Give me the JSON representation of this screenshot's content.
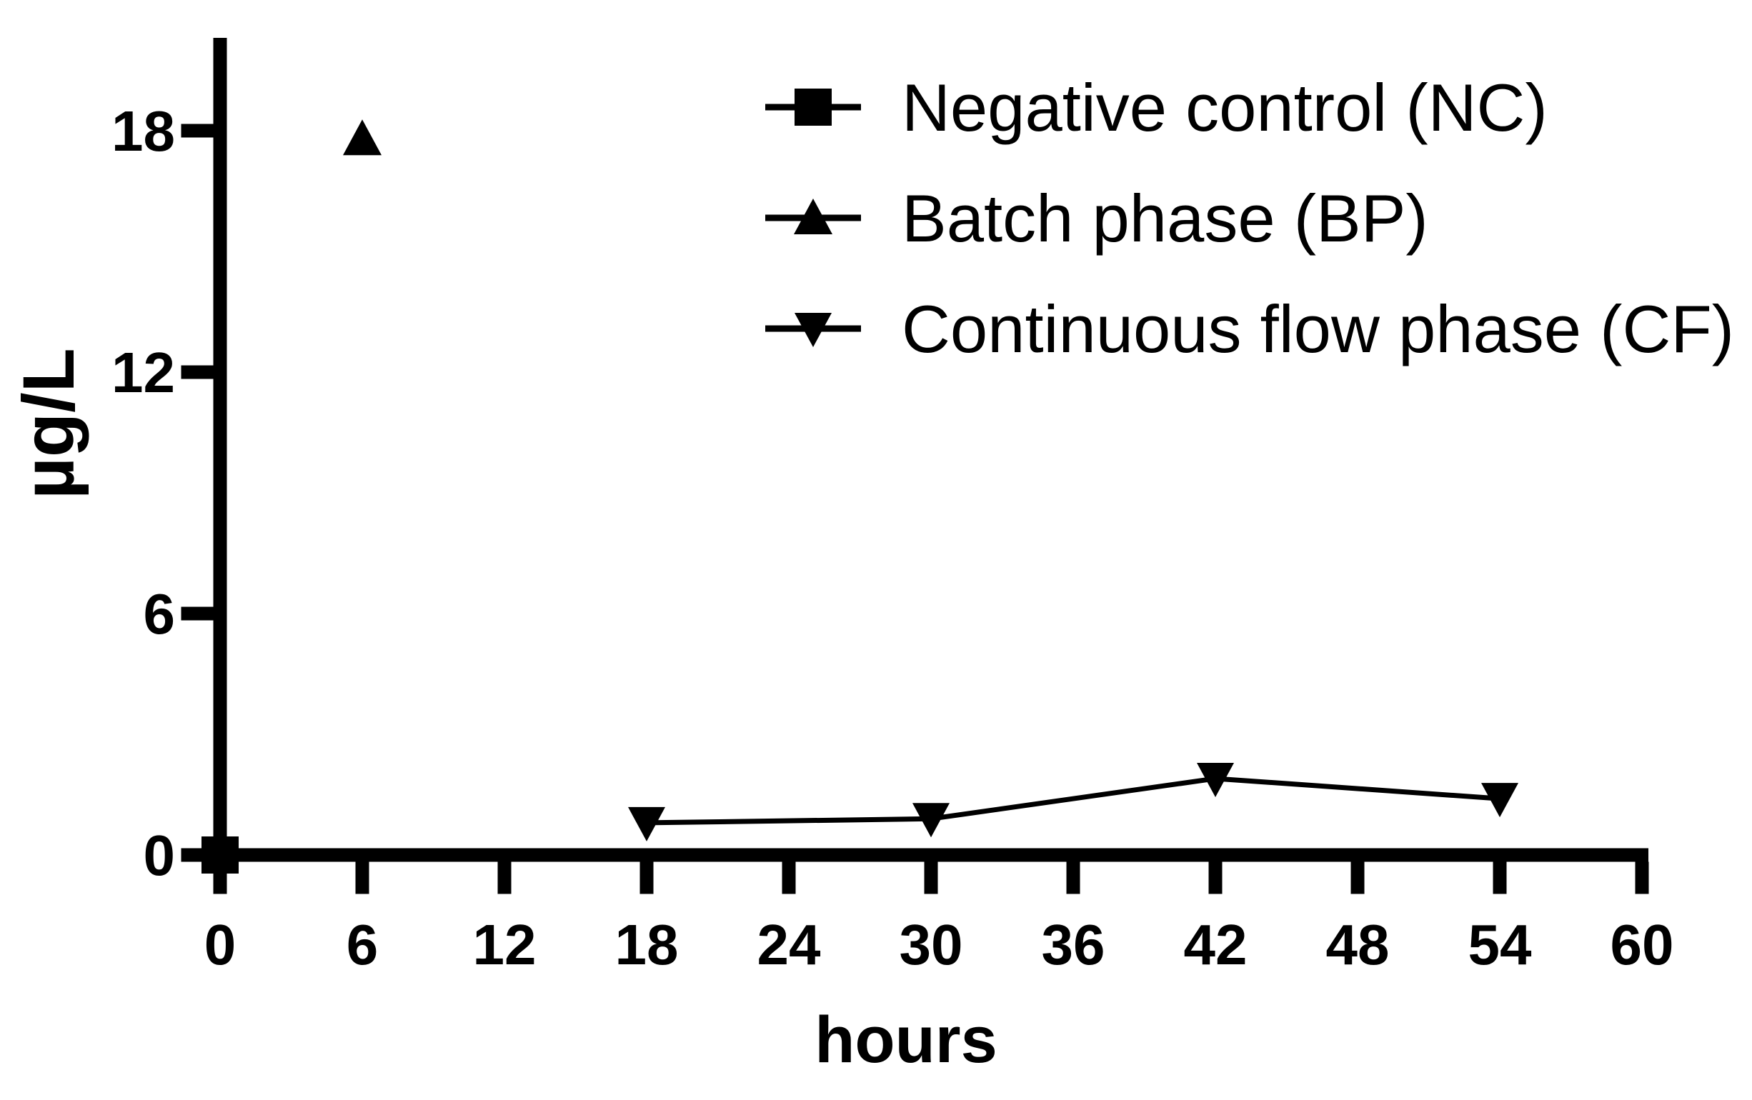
{
  "figure": {
    "background": "#ffffff",
    "ink": "#000000"
  },
  "chart_data": {
    "type": "scatter",
    "title": "",
    "xlabel": "hours",
    "ylabel": "µg/L",
    "xlim": [
      0,
      60.3
    ],
    "ylim": [
      0,
      20.3
    ],
    "x_ticks": [
      0,
      6,
      12,
      18,
      24,
      30,
      36,
      42,
      48,
      54,
      60
    ],
    "y_ticks": [
      0,
      6,
      12,
      18
    ],
    "grid": false,
    "legend_position": "top-right-inside",
    "series": [
      {
        "name": "Negative control (NC)",
        "marker": "square",
        "connect_line": false,
        "points": [
          [
            0,
            0
          ]
        ]
      },
      {
        "name": "Batch phase (BP)",
        "marker": "triangle-up",
        "connect_line": false,
        "points": [
          [
            6,
            17.8
          ]
        ]
      },
      {
        "name": "Continuous flow phase (CF)",
        "marker": "triangle-down",
        "connect_line": true,
        "points": [
          [
            18,
            0.8
          ],
          [
            30,
            0.9
          ],
          [
            42,
            1.9
          ],
          [
            54,
            1.4
          ]
        ]
      }
    ]
  }
}
